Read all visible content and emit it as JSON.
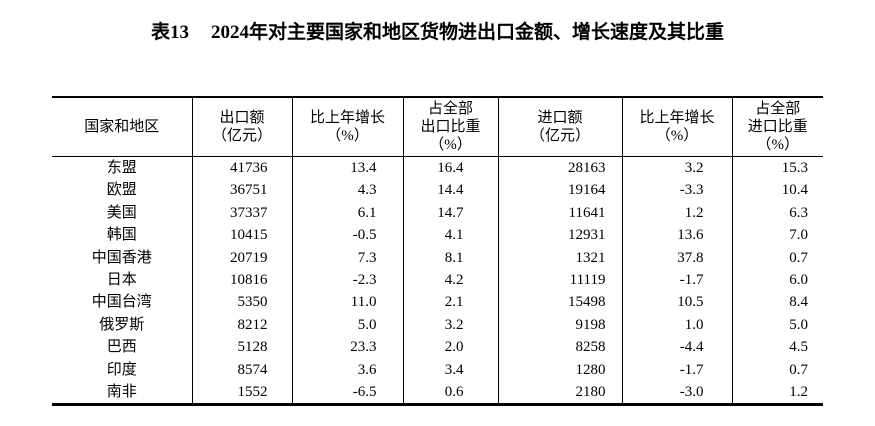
{
  "page": {
    "background_color": "#ffffff",
    "text_color": "#000000"
  },
  "title": {
    "table_no": "表13",
    "text": "2024年对主要国家和地区货物进出口金额、增长速度及其比重"
  },
  "table": {
    "columns": [
      {
        "id": "region",
        "lines": [
          "国家和地区"
        ]
      },
      {
        "id": "export-value",
        "lines": [
          "出口额",
          "（亿元）"
        ]
      },
      {
        "id": "export-growth",
        "lines": [
          "比上年增长",
          "（%）"
        ]
      },
      {
        "id": "export-share",
        "lines": [
          "占全部",
          "出口比重",
          "（%）"
        ]
      },
      {
        "id": "import-value",
        "lines": [
          "进口额",
          "（亿元）"
        ]
      },
      {
        "id": "import-growth",
        "lines": [
          "比上年增长",
          "（%）"
        ]
      },
      {
        "id": "import-share",
        "lines": [
          "占全部",
          "进口比重",
          "（%）"
        ]
      }
    ],
    "rows": [
      {
        "region": "东盟",
        "values": [
          "41736",
          "13.4",
          "16.4",
          "28163",
          "3.2",
          "15.3"
        ]
      },
      {
        "region": "欧盟",
        "values": [
          "36751",
          "4.3",
          "14.4",
          "19164",
          "-3.3",
          "10.4"
        ]
      },
      {
        "region": "美国",
        "values": [
          "37337",
          "6.1",
          "14.7",
          "11641",
          "1.2",
          "6.3"
        ]
      },
      {
        "region": "韩国",
        "values": [
          "10415",
          "-0.5",
          "4.1",
          "12931",
          "13.6",
          "7.0"
        ]
      },
      {
        "region": "中国香港",
        "values": [
          "20719",
          "7.3",
          "8.1",
          "1321",
          "37.8",
          "0.7"
        ]
      },
      {
        "region": "日本",
        "values": [
          "10816",
          "-2.3",
          "4.2",
          "11119",
          "-1.7",
          "6.0"
        ]
      },
      {
        "region": "中国台湾",
        "values": [
          "5350",
          "11.0",
          "2.1",
          "15498",
          "10.5",
          "8.4"
        ]
      },
      {
        "region": "俄罗斯",
        "values": [
          "8212",
          "5.0",
          "3.2",
          "9198",
          "1.0",
          "5.0"
        ]
      },
      {
        "region": "巴西",
        "values": [
          "5128",
          "23.3",
          "2.0",
          "8258",
          "-4.4",
          "4.5"
        ]
      },
      {
        "region": "印度",
        "values": [
          "8574",
          "3.6",
          "3.4",
          "1280",
          "-1.7",
          "0.7"
        ]
      },
      {
        "region": "南非",
        "values": [
          "1552",
          "-6.5",
          "0.6",
          "2180",
          "-3.0",
          "1.2"
        ]
      }
    ]
  }
}
